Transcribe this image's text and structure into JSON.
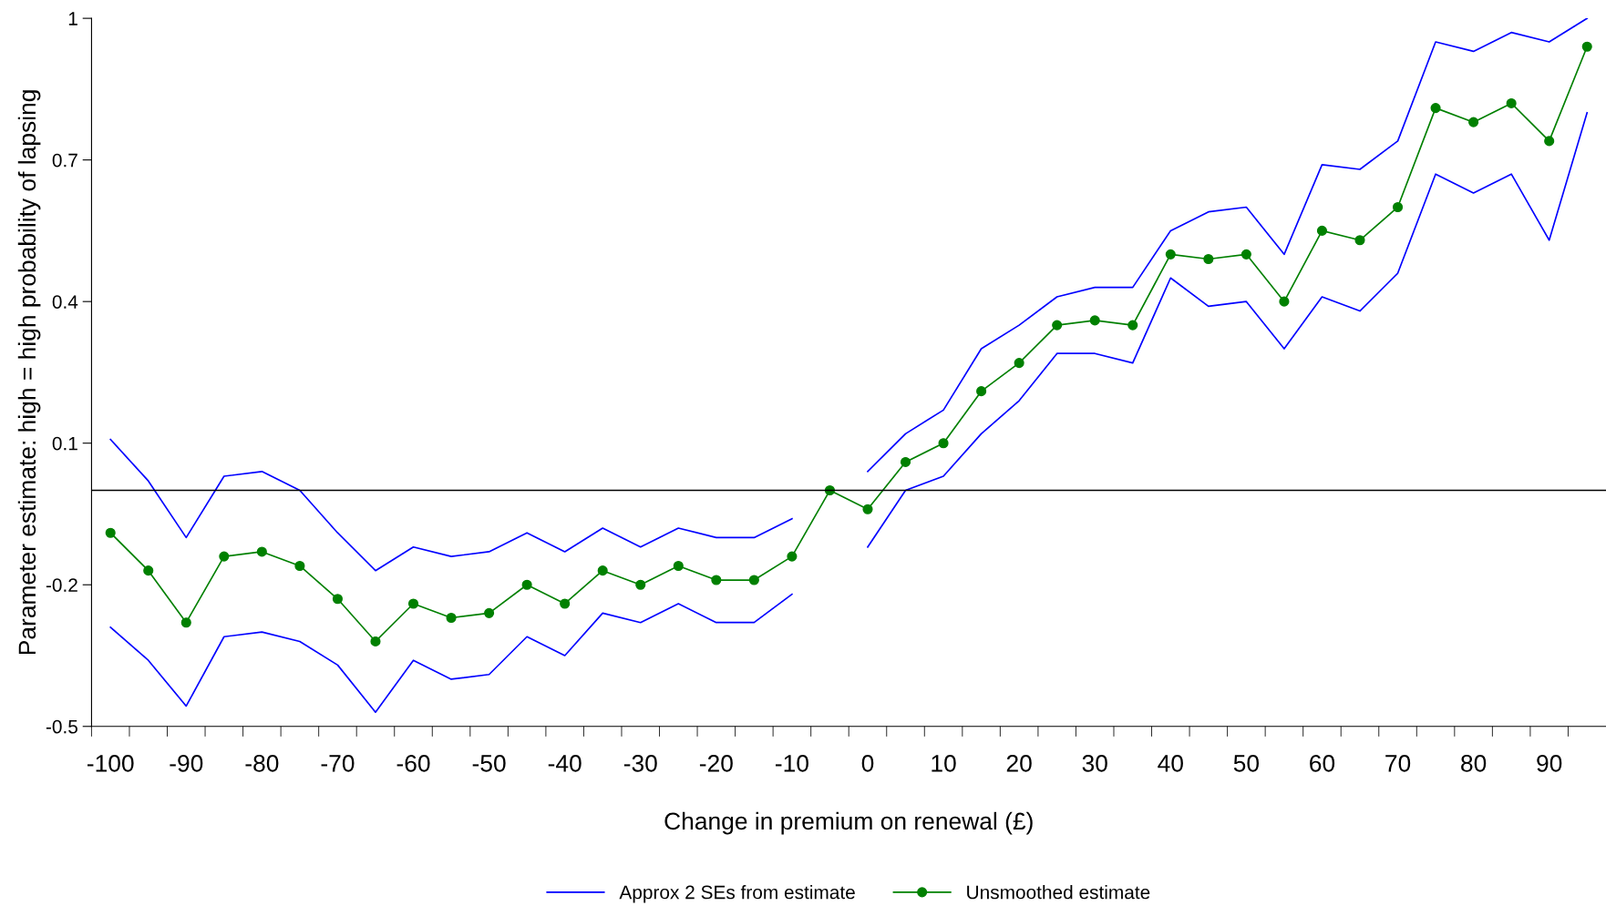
{
  "chart_data": {
    "type": "line",
    "xlabel": "Change in premium on renewal (£)",
    "ylabel": "Parameter estimate: high = high probability of lapsing",
    "categories": [
      "-100",
      null,
      "-90",
      null,
      "-80",
      null,
      "-70",
      null,
      "-60",
      null,
      "-50",
      null,
      "-40",
      null,
      "-30",
      null,
      "-20",
      null,
      "-10",
      null,
      "0",
      null,
      "10",
      null,
      "20",
      null,
      "30",
      null,
      "40",
      null,
      "50",
      null,
      "60",
      null,
      "70",
      null,
      "80",
      null,
      "90",
      null
    ],
    "series": [
      {
        "name": "Approx 2 SEs from estimate",
        "color": "#0000ff",
        "marker": "none",
        "values": [
          0.108,
          0.02,
          -0.1,
          0.03,
          0.04,
          0.0,
          -0.09,
          -0.17,
          -0.12,
          -0.14,
          -0.13,
          -0.09,
          -0.13,
          -0.08,
          -0.12,
          -0.08,
          -0.1,
          -0.1,
          -0.06,
          null,
          0.04,
          0.12,
          0.17,
          0.3,
          0.35,
          0.41,
          0.43,
          0.43,
          0.55,
          0.59,
          0.6,
          0.5,
          0.69,
          0.68,
          0.74,
          0.95,
          0.93,
          0.97,
          0.95,
          1.0
        ]
      },
      {
        "color": "#0000ff",
        "marker": "none",
        "values": [
          -0.29,
          -0.36,
          -0.457,
          -0.31,
          -0.3,
          -0.32,
          -0.37,
          -0.47,
          -0.36,
          -0.4,
          -0.39,
          -0.31,
          -0.35,
          -0.26,
          -0.28,
          -0.24,
          -0.28,
          -0.28,
          -0.22,
          null,
          -0.12,
          0.0,
          0.03,
          0.12,
          0.19,
          0.29,
          0.29,
          0.27,
          0.45,
          0.39,
          0.4,
          0.3,
          0.41,
          0.38,
          0.46,
          0.67,
          0.63,
          0.67,
          0.53,
          0.8
        ]
      },
      {
        "name": "Unsmoothed estimate",
        "color": "#008000",
        "marker": "circle",
        "values": [
          -0.09,
          -0.17,
          -0.28,
          -0.14,
          -0.13,
          -0.16,
          -0.23,
          -0.32,
          -0.24,
          -0.27,
          -0.26,
          -0.2,
          -0.24,
          -0.17,
          -0.2,
          -0.16,
          -0.19,
          -0.19,
          -0.14,
          0.0,
          -0.04,
          0.06,
          0.1,
          0.21,
          0.27,
          0.35,
          0.36,
          0.35,
          0.5,
          0.49,
          0.5,
          0.4,
          0.55,
          0.53,
          0.6,
          0.81,
          0.78,
          0.82,
          0.74,
          0.94
        ]
      }
    ],
    "ylim": [
      -0.5,
      1
    ],
    "yticks": [
      -0.5,
      -0.2,
      0.1,
      0.4,
      0.7,
      1
    ],
    "ref_lines": [
      {
        "axis": "y",
        "value": 0,
        "color": "#000000"
      }
    ],
    "grid": false,
    "legend": "bottom"
  }
}
